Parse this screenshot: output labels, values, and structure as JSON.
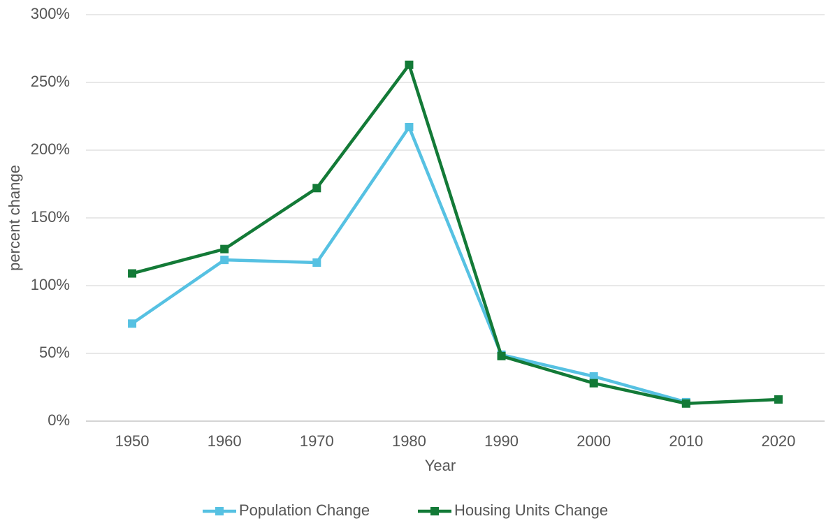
{
  "chart_data": {
    "type": "line",
    "x_label": "Year",
    "y_label": "percent change",
    "categories": [
      "1950",
      "1960",
      "1970",
      "1980",
      "1990",
      "2000",
      "2010",
      "2020"
    ],
    "series": [
      {
        "name": "Population Change",
        "color": "#56c1e2",
        "values": [
          72,
          119,
          117,
          217,
          49,
          33,
          14,
          null
        ]
      },
      {
        "name": "Housing Units Change",
        "color": "#137a37",
        "values": [
          109,
          127,
          172,
          263,
          48,
          28,
          13,
          16
        ]
      }
    ],
    "ylim": [
      0,
      300
    ],
    "yticks": [
      {
        "value": 0,
        "label": "0%"
      },
      {
        "value": 50,
        "label": "50%"
      },
      {
        "value": 100,
        "label": "100%"
      },
      {
        "value": 150,
        "label": "150%"
      },
      {
        "value": 200,
        "label": "200%"
      },
      {
        "value": 250,
        "label": "250%"
      },
      {
        "value": 300,
        "label": "300%"
      }
    ],
    "grid": true,
    "legend": "bottom"
  }
}
